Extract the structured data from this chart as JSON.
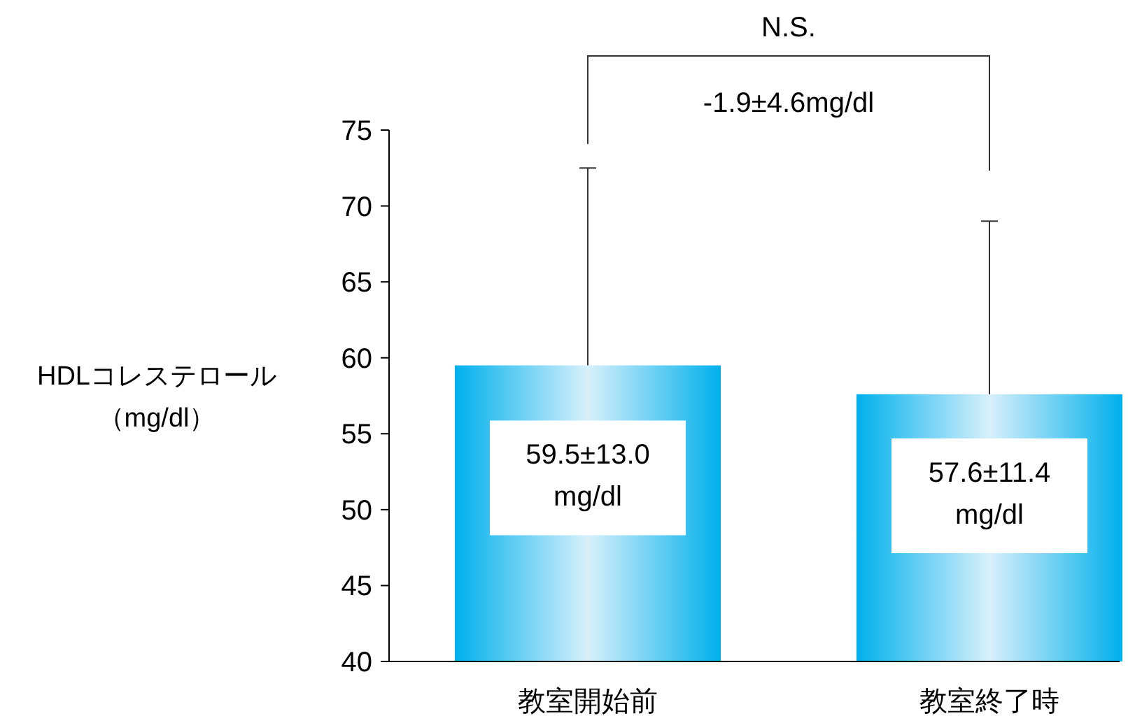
{
  "chart_data": {
    "type": "bar",
    "ylabel": "HDLコレステロール（mg/dl）",
    "categories": [
      "教室開始前",
      "教室終了時"
    ],
    "values": [
      59.5,
      57.6
    ],
    "color": "#00b0ec",
    "errors": [
      [
        59.5,
        72.5
      ],
      [
        57.6,
        69.0
      ]
    ],
    "value_labels": [
      "59.5±13.0 mg/dl",
      "57.6±11.4 mg/dl"
    ],
    "ylim": [
      40,
      75
    ],
    "yticks": [
      40,
      45,
      50,
      55,
      60,
      65,
      70,
      75
    ],
    "grid": false,
    "annotations": [
      "N.S.",
      "-1.9±4.6mg/dl"
    ]
  }
}
